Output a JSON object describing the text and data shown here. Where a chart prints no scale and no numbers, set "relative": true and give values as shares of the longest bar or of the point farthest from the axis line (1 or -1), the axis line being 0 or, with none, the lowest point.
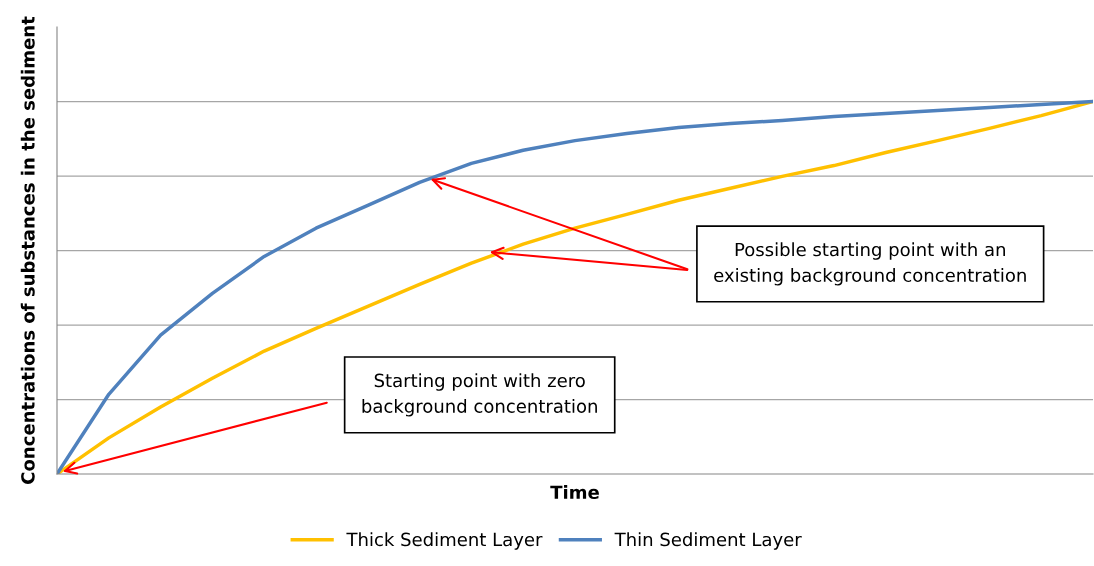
{
  "chart_data": {
    "type": "line",
    "relative": true,
    "xlabel": "Time",
    "ylabel": "Concentrations of substances in the sediment",
    "categories": [
      null,
      null,
      null,
      null,
      null,
      null,
      null,
      null,
      null,
      null,
      null,
      null,
      null,
      null,
      null,
      null,
      null,
      null,
      null,
      null,
      null
    ],
    "series": [
      {
        "name": "Thick Sediment Layer",
        "color": "#ffc000",
        "values": [
          0,
          0.097,
          0.18,
          0.257,
          0.33,
          0.391,
          0.45,
          0.509,
          0.566,
          0.617,
          0.66,
          0.697,
          0.735,
          0.767,
          0.799,
          0.828,
          0.863,
          0.895,
          0.928,
          0.962,
          1
        ]
      },
      {
        "name": "Thin Sediment Layer",
        "color": "#4f81bd",
        "values": [
          0,
          0.214,
          0.373,
          0.485,
          0.584,
          0.66,
          0.721,
          0.783,
          0.834,
          0.869,
          0.895,
          0.914,
          0.93,
          0.941,
          0.949,
          0.96,
          0.968,
          0.976,
          0.984,
          0.992,
          1
        ]
      }
    ],
    "annotations": [
      "Starting point with zero\nbackground concentration",
      "Possible starting point with an\nexisting background concentration"
    ],
    "grid": "y",
    "legend": "bottom",
    "marker": "none",
    "line_style": "solid"
  }
}
